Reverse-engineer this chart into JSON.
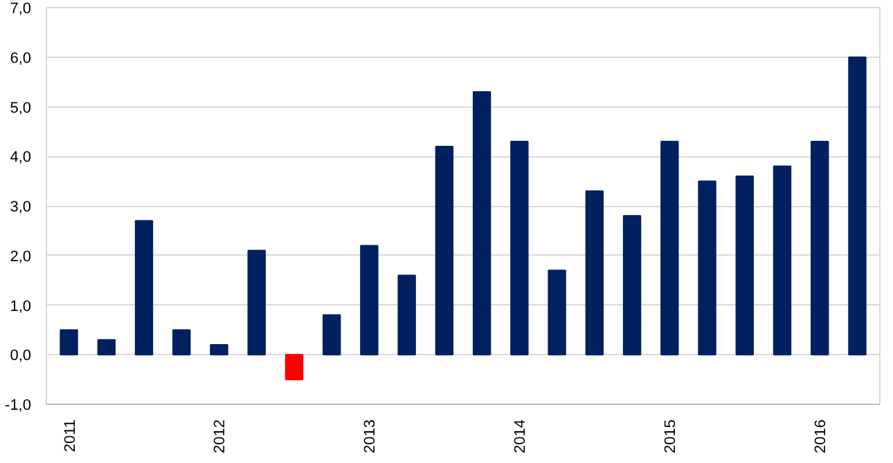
{
  "chart_data": {
    "type": "bar",
    "categories": [
      "2011",
      null,
      null,
      null,
      "2012",
      null,
      null,
      null,
      "2013",
      null,
      null,
      null,
      "2014",
      null,
      null,
      null,
      "2015",
      null,
      null,
      null,
      "2016",
      null
    ],
    "values": [
      0.5,
      0.3,
      2.7,
      0.5,
      0.2,
      2.1,
      -0.5,
      0.8,
      2.2,
      1.6,
      4.2,
      5.3,
      4.3,
      1.7,
      3.3,
      2.8,
      4.3,
      3.5,
      3.6,
      3.8,
      4.3,
      6.0
    ],
    "colors": [
      "#002060",
      "#002060",
      "#002060",
      "#002060",
      "#002060",
      "#002060",
      "#ff0000",
      "#002060",
      "#002060",
      "#002060",
      "#002060",
      "#002060",
      "#002060",
      "#002060",
      "#002060",
      "#002060",
      "#002060",
      "#002060",
      "#002060",
      "#002060",
      "#002060",
      "#002060"
    ],
    "ylim": [
      -1,
      7
    ],
    "yticks": [
      {
        "value": -1,
        "label": "-1,0"
      },
      {
        "value": 0,
        "label": "0,0"
      },
      {
        "value": 1,
        "label": "1,0"
      },
      {
        "value": 2,
        "label": "2,0"
      },
      {
        "value": 3,
        "label": "3,0"
      },
      {
        "value": 4,
        "label": "4,0"
      },
      {
        "value": 5,
        "label": "5,0"
      },
      {
        "value": 6,
        "label": "6,0"
      },
      {
        "value": 7,
        "label": "7,0"
      }
    ],
    "grid": "y"
  }
}
